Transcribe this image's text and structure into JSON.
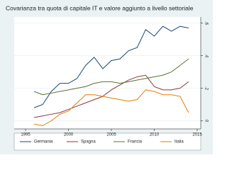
{
  "chart_data": {
    "type": "line",
    "title": "Covarianza tra quota di capitale IT e valore aggiunto a livello settoriale",
    "x": [
      1996,
      1997,
      1998,
      1999,
      2000,
      2001,
      2002,
      2003,
      2004,
      2005,
      2006,
      2007,
      2008,
      2009,
      2010,
      2011,
      2012,
      2013,
      2014
    ],
    "series": [
      {
        "name": "Germania",
        "color": "#1a476f",
        "values": [
          0.08,
          0.1,
          0.18,
          0.23,
          0.23,
          0.26,
          0.34,
          0.39,
          0.32,
          0.37,
          0.38,
          0.43,
          0.45,
          0.56,
          0.52,
          0.58,
          0.55,
          0.58,
          0.57
        ]
      },
      {
        "name": "Spagna",
        "color": "#90353b",
        "values": [
          0.02,
          0.03,
          0.04,
          0.05,
          0.07,
          0.09,
          0.11,
          0.13,
          0.15,
          0.19,
          0.22,
          0.25,
          0.27,
          0.28,
          0.21,
          0.19,
          0.19,
          0.2,
          0.24
        ]
      },
      {
        "name": "Francia",
        "color": "#55752f",
        "values": [
          0.18,
          0.16,
          0.17,
          0.18,
          0.19,
          0.2,
          0.21,
          0.23,
          0.24,
          0.24,
          0.23,
          0.24,
          0.25,
          0.26,
          0.27,
          0.28,
          0.3,
          0.34,
          0.38
        ]
      },
      {
        "name": "Italia",
        "color": "#e37e00",
        "values": [
          -0.02,
          -0.03,
          0.0,
          0.04,
          0.06,
          0.11,
          0.16,
          0.16,
          0.15,
          0.14,
          0.13,
          0.12,
          0.13,
          0.19,
          0.18,
          0.16,
          0.16,
          0.15,
          0.05
        ]
      }
    ],
    "xlim": [
      1995,
      2015
    ],
    "xticks": [
      1995,
      2000,
      2005,
      2010,
      2015
    ],
    "ylim": [
      -0.05,
      0.62
    ],
    "yticks": [
      0,
      {
        "value": 0.2,
        "label": ".2"
      },
      {
        "value": 0.4,
        "label": ".4"
      },
      {
        "value": 0.6,
        "label": ".6"
      }
    ],
    "grid": true
  }
}
